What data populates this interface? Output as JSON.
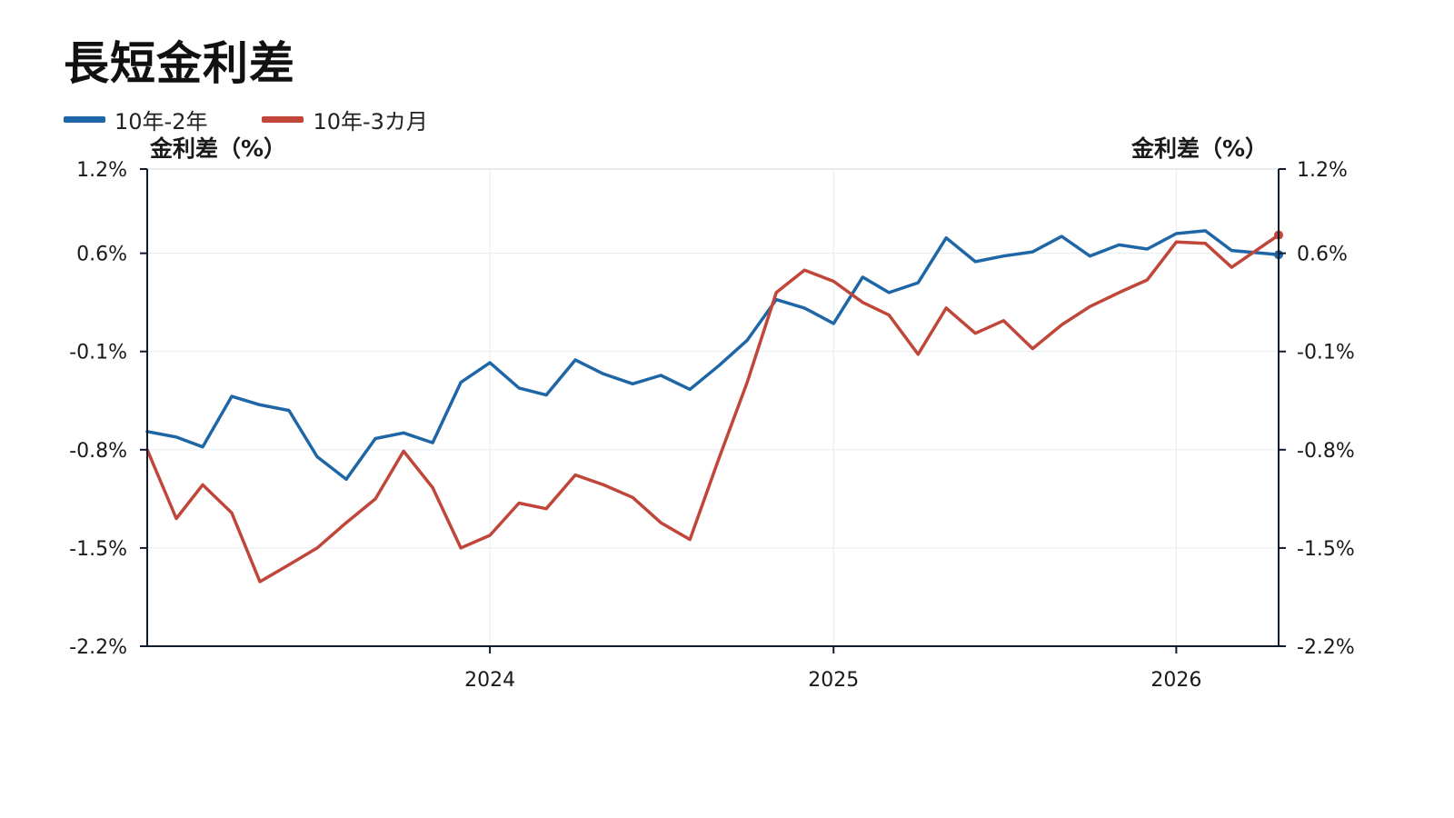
{
  "title": "長短金利差",
  "colors": {
    "series_10y2y": "#1f66a6",
    "series_10y3m": "#c0463a",
    "axis": "#0d1b2a",
    "grid": "#e6ebf0"
  },
  "chart_data": {
    "type": "line",
    "title": "長短金利差",
    "ylabel_left": "金利差（%）",
    "ylabel_right": "金利差（%）",
    "ylim": [
      -2.2,
      1.2
    ],
    "yticks": [
      1.2,
      0.6,
      -0.1,
      -0.8,
      -1.5,
      -2.2
    ],
    "ytick_labels": [
      "1.2%",
      "0.6%",
      "-0.1%",
      "-0.8%",
      "-1.5%",
      "-2.2%"
    ],
    "xlim": [
      "2023-01-01",
      "2026-04-20"
    ],
    "xticks": [
      "2024-01-01",
      "2025-01-01",
      "2026-01-01"
    ],
    "xtick_labels": [
      "2024",
      "2025",
      "2026"
    ],
    "grid": true,
    "legend_position": "top-left",
    "x": [
      "2023-01-01",
      "2023-02-01",
      "2023-03-01",
      "2023-04-01",
      "2023-05-01",
      "2023-06-01",
      "2023-07-01",
      "2023-08-01",
      "2023-09-01",
      "2023-10-01",
      "2023-11-01",
      "2023-12-01",
      "2024-01-01",
      "2024-02-01",
      "2024-03-01",
      "2024-04-01",
      "2024-05-01",
      "2024-06-01",
      "2024-07-01",
      "2024-08-01",
      "2024-09-01",
      "2024-10-01",
      "2024-11-01",
      "2024-12-01",
      "2025-01-01",
      "2025-02-01",
      "2025-03-01",
      "2025-04-01",
      "2025-05-01",
      "2025-06-01",
      "2025-07-01",
      "2025-08-01",
      "2025-09-01",
      "2025-10-01",
      "2025-11-01",
      "2025-12-01",
      "2026-01-01",
      "2026-02-01",
      "2026-03-01",
      "2026-04-20"
    ],
    "series": [
      {
        "name": "10年-2年",
        "values": [
          -0.67,
          -0.71,
          -0.78,
          -0.42,
          -0.48,
          -0.52,
          -0.85,
          -1.01,
          -0.72,
          -0.68,
          -0.75,
          -0.32,
          -0.18,
          -0.36,
          -0.41,
          -0.16,
          -0.26,
          -0.33,
          -0.27,
          -0.37,
          -0.2,
          -0.02,
          0.27,
          0.21,
          0.1,
          0.43,
          0.32,
          0.39,
          0.71,
          0.54,
          0.58,
          0.61,
          0.72,
          0.58,
          0.66,
          0.63,
          0.74,
          0.76,
          0.62,
          0.59
        ]
      },
      {
        "name": "10年-3カ月",
        "values": [
          -0.8,
          -1.29,
          -1.05,
          -1.25,
          -1.74,
          -1.62,
          -1.5,
          -1.32,
          -1.15,
          -0.81,
          -1.07,
          -1.5,
          -1.41,
          -1.18,
          -1.22,
          -0.98,
          -1.05,
          -1.14,
          -1.32,
          -1.44,
          -0.86,
          -0.32,
          0.32,
          0.48,
          0.4,
          0.25,
          0.16,
          -0.12,
          0.21,
          0.03,
          0.12,
          -0.08,
          0.09,
          0.22,
          0.32,
          0.41,
          0.68,
          0.67,
          0.5,
          0.73
        ]
      }
    ]
  }
}
